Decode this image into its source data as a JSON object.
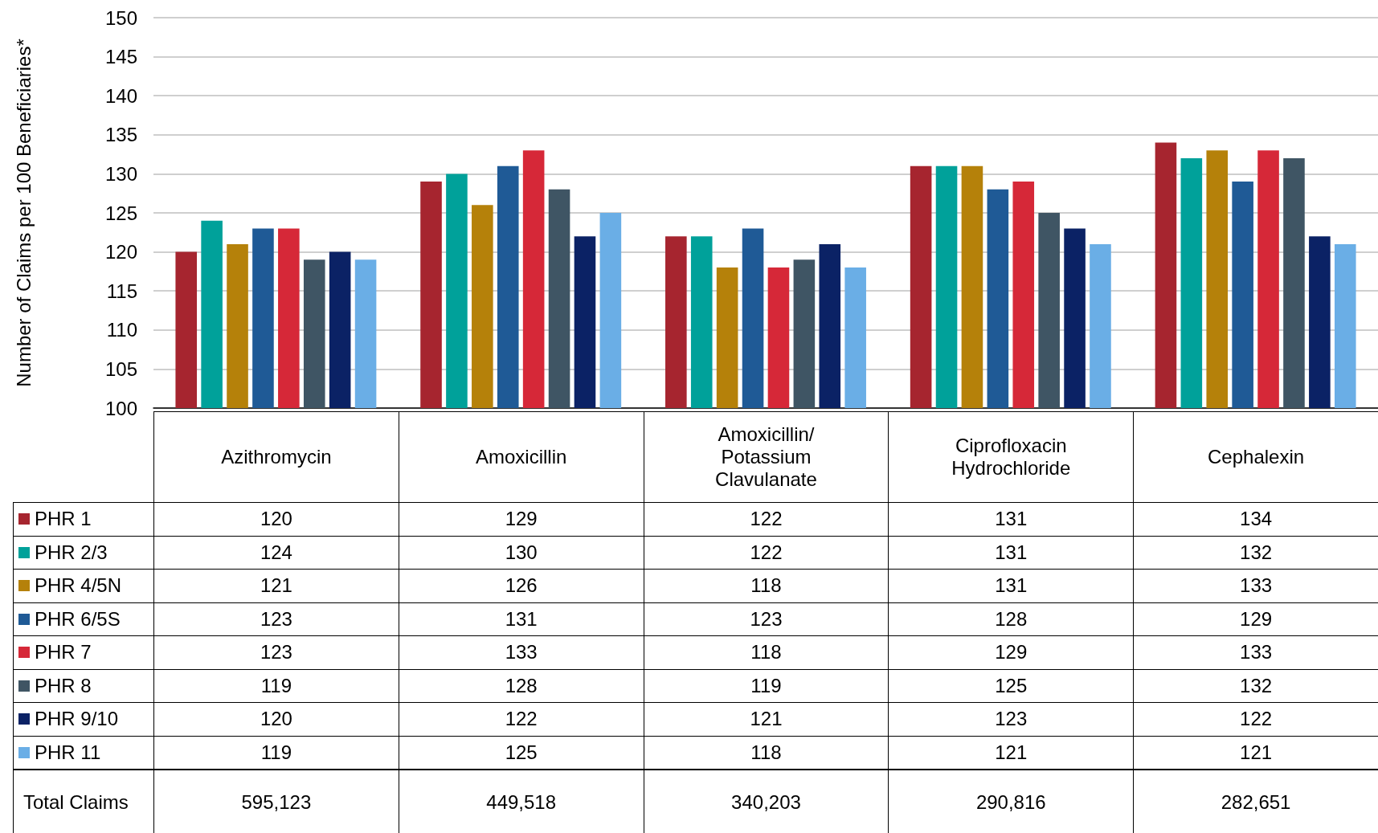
{
  "chart_data": {
    "type": "bar",
    "ylabel": "Number of Claims per 100 Beneficiaries*",
    "categories": [
      "Azithromycin",
      "Amoxicillin",
      "Amoxicillin/ Potassium Clavulanate",
      "Ciprofloxacin Hydrochloride",
      "Cephalexin"
    ],
    "series": [
      {
        "name": "PHR 1",
        "color": "#a6252f",
        "values": [
          120,
          129,
          122,
          131,
          134
        ]
      },
      {
        "name": "PHR 2/3",
        "color": "#00a19a",
        "values": [
          124,
          130,
          122,
          131,
          132
        ]
      },
      {
        "name": "PHR 4/5N",
        "color": "#b5810a",
        "values": [
          121,
          126,
          118,
          131,
          133
        ]
      },
      {
        "name": "PHR 6/5S",
        "color": "#1f5a96",
        "values": [
          123,
          131,
          123,
          128,
          129
        ]
      },
      {
        "name": "PHR 7",
        "color": "#d62838",
        "values": [
          123,
          133,
          118,
          129,
          133
        ]
      },
      {
        "name": "PHR 8",
        "color": "#3f5564",
        "values": [
          119,
          128,
          119,
          125,
          132
        ]
      },
      {
        "name": "PHR 9/10",
        "color": "#0b2265",
        "values": [
          120,
          122,
          121,
          123,
          122
        ]
      },
      {
        "name": "PHR 11",
        "color": "#6aaee6",
        "values": [
          119,
          125,
          118,
          121,
          121
        ]
      }
    ],
    "ylim": [
      100,
      150
    ],
    "yticks": [
      100,
      105,
      110,
      115,
      120,
      125,
      130,
      135,
      140,
      145,
      150
    ],
    "grid": "y",
    "legend": "bottom",
    "data_labels": true,
    "annotations": [
      "Total Claims",
      "595,123",
      "449,518",
      "340,203",
      "290,816",
      "282,651"
    ]
  }
}
